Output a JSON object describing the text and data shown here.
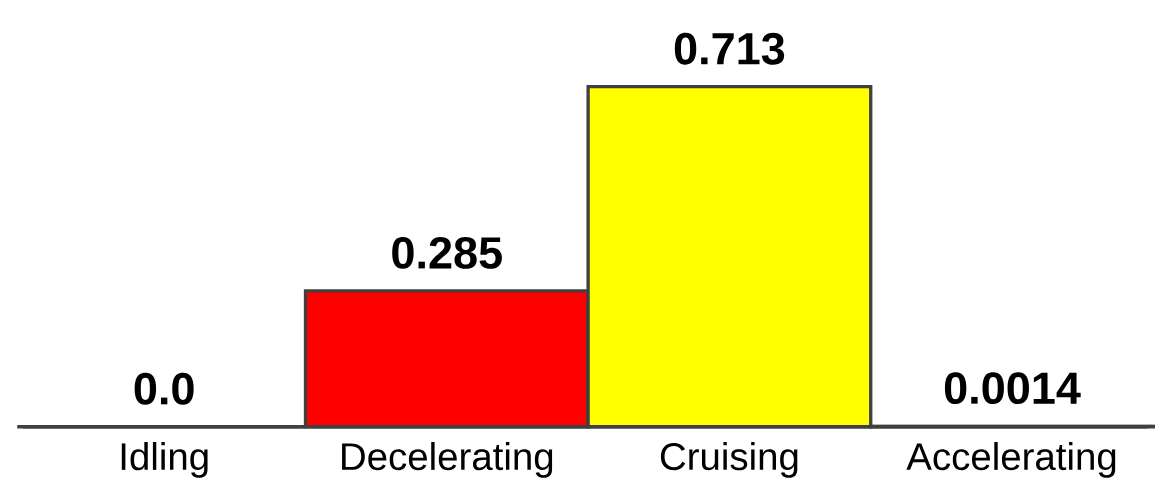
{
  "chart_data": {
    "type": "bar",
    "tick_labels": "x",
    "categories": [
      "Idling",
      "Decelerating",
      "Cruising",
      "Accelerating"
    ],
    "values": [
      0.0,
      0.285,
      0.713,
      0.0014
    ],
    "value_labels": [
      "0.0",
      "0.285",
      "0.713",
      "0.0014"
    ],
    "colors": [
      "#ffffff",
      "#ff0000",
      "#ffff00",
      "#ffffff"
    ]
  }
}
